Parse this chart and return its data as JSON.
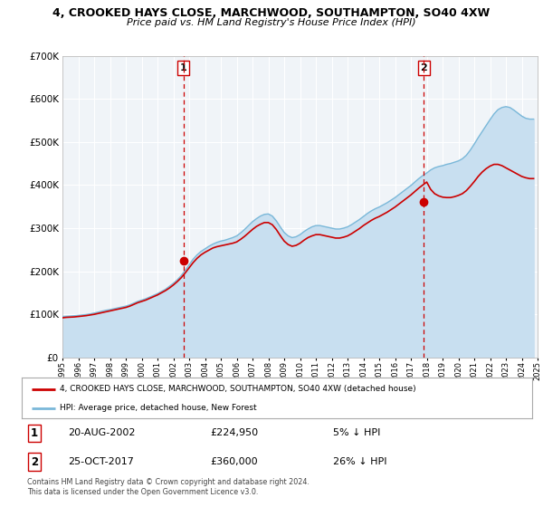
{
  "title": "4, CROOKED HAYS CLOSE, MARCHWOOD, SOUTHAMPTON, SO40 4XW",
  "subtitle": "Price paid vs. HM Land Registry's House Price Index (HPI)",
  "legend_line1": "4, CROOKED HAYS CLOSE, MARCHWOOD, SOUTHAMPTON, SO40 4XW (detached house)",
  "legend_line2": "HPI: Average price, detached house, New Forest",
  "footer1": "Contains HM Land Registry data © Crown copyright and database right 2024.",
  "footer2": "This data is licensed under the Open Government Licence v3.0.",
  "sale1_date": "20-AUG-2002",
  "sale1_price": 224950,
  "sale1_label": "5% ↓ HPI",
  "sale1_year": 2002.63,
  "sale2_date": "25-OCT-2017",
  "sale2_price": 360000,
  "sale2_label": "26% ↓ HPI",
  "sale2_year": 2017.81,
  "hpi_color": "#7ab8d9",
  "hpi_fill_color": "#c8dff0",
  "price_color": "#cc0000",
  "vline_color": "#cc0000",
  "plot_bg": "#f0f4f8",
  "ylim": [
    0,
    700000
  ],
  "xlim_start": 1995,
  "xlim_end": 2025,
  "hpi_data": [
    [
      1995.0,
      95000
    ],
    [
      1995.25,
      95500
    ],
    [
      1995.5,
      96000
    ],
    [
      1995.75,
      96800
    ],
    [
      1996.0,
      97500
    ],
    [
      1996.25,
      98500
    ],
    [
      1996.5,
      99500
    ],
    [
      1996.75,
      101000
    ],
    [
      1997.0,
      103000
    ],
    [
      1997.25,
      105000
    ],
    [
      1997.5,
      107500
    ],
    [
      1997.75,
      109500
    ],
    [
      1998.0,
      111000
    ],
    [
      1998.25,
      113000
    ],
    [
      1998.5,
      115000
    ],
    [
      1998.75,
      117000
    ],
    [
      1999.0,
      119000
    ],
    [
      1999.25,
      122000
    ],
    [
      1999.5,
      126000
    ],
    [
      1999.75,
      130000
    ],
    [
      2000.0,
      133000
    ],
    [
      2000.25,
      136000
    ],
    [
      2000.5,
      140000
    ],
    [
      2000.75,
      144000
    ],
    [
      2001.0,
      148000
    ],
    [
      2001.25,
      153000
    ],
    [
      2001.5,
      158000
    ],
    [
      2001.75,
      165000
    ],
    [
      2002.0,
      172000
    ],
    [
      2002.25,
      180000
    ],
    [
      2002.5,
      190000
    ],
    [
      2002.75,
      202000
    ],
    [
      2003.0,
      215000
    ],
    [
      2003.25,
      228000
    ],
    [
      2003.5,
      238000
    ],
    [
      2003.75,
      246000
    ],
    [
      2004.0,
      252000
    ],
    [
      2004.25,
      258000
    ],
    [
      2004.5,
      263000
    ],
    [
      2004.75,
      267000
    ],
    [
      2005.0,
      270000
    ],
    [
      2005.25,
      272000
    ],
    [
      2005.5,
      275000
    ],
    [
      2005.75,
      278000
    ],
    [
      2006.0,
      282000
    ],
    [
      2006.25,
      289000
    ],
    [
      2006.5,
      297000
    ],
    [
      2006.75,
      306000
    ],
    [
      2007.0,
      315000
    ],
    [
      2007.25,
      322000
    ],
    [
      2007.5,
      328000
    ],
    [
      2007.75,
      332000
    ],
    [
      2008.0,
      333000
    ],
    [
      2008.25,
      328000
    ],
    [
      2008.5,
      317000
    ],
    [
      2008.75,
      303000
    ],
    [
      2009.0,
      290000
    ],
    [
      2009.25,
      282000
    ],
    [
      2009.5,
      278000
    ],
    [
      2009.75,
      280000
    ],
    [
      2010.0,
      285000
    ],
    [
      2010.25,
      292000
    ],
    [
      2010.5,
      298000
    ],
    [
      2010.75,
      303000
    ],
    [
      2011.0,
      306000
    ],
    [
      2011.25,
      306000
    ],
    [
      2011.5,
      304000
    ],
    [
      2011.75,
      302000
    ],
    [
      2012.0,
      300000
    ],
    [
      2012.25,
      298000
    ],
    [
      2012.5,
      298000
    ],
    [
      2012.75,
      300000
    ],
    [
      2013.0,
      303000
    ],
    [
      2013.25,
      308000
    ],
    [
      2013.5,
      314000
    ],
    [
      2013.75,
      320000
    ],
    [
      2014.0,
      327000
    ],
    [
      2014.25,
      334000
    ],
    [
      2014.5,
      340000
    ],
    [
      2014.75,
      345000
    ],
    [
      2015.0,
      349000
    ],
    [
      2015.25,
      354000
    ],
    [
      2015.5,
      359000
    ],
    [
      2015.75,
      365000
    ],
    [
      2016.0,
      371000
    ],
    [
      2016.25,
      378000
    ],
    [
      2016.5,
      385000
    ],
    [
      2016.75,
      392000
    ],
    [
      2017.0,
      399000
    ],
    [
      2017.25,
      407000
    ],
    [
      2017.5,
      415000
    ],
    [
      2017.75,
      422000
    ],
    [
      2018.0,
      428000
    ],
    [
      2018.25,
      435000
    ],
    [
      2018.5,
      440000
    ],
    [
      2018.75,
      443000
    ],
    [
      2019.0,
      445000
    ],
    [
      2019.25,
      448000
    ],
    [
      2019.5,
      450000
    ],
    [
      2019.75,
      453000
    ],
    [
      2020.0,
      456000
    ],
    [
      2020.25,
      461000
    ],
    [
      2020.5,
      469000
    ],
    [
      2020.75,
      481000
    ],
    [
      2021.0,
      495000
    ],
    [
      2021.25,
      510000
    ],
    [
      2021.5,
      524000
    ],
    [
      2021.75,
      538000
    ],
    [
      2022.0,
      552000
    ],
    [
      2022.25,
      565000
    ],
    [
      2022.5,
      575000
    ],
    [
      2022.75,
      580000
    ],
    [
      2023.0,
      582000
    ],
    [
      2023.25,
      580000
    ],
    [
      2023.5,
      574000
    ],
    [
      2023.75,
      567000
    ],
    [
      2024.0,
      560000
    ],
    [
      2024.25,
      555000
    ],
    [
      2024.5,
      553000
    ],
    [
      2024.75,
      553000
    ]
  ],
  "price_data": [
    [
      1995.0,
      92000
    ],
    [
      1995.25,
      93000
    ],
    [
      1995.5,
      93500
    ],
    [
      1995.75,
      94000
    ],
    [
      1996.0,
      95000
    ],
    [
      1996.25,
      96000
    ],
    [
      1996.5,
      97000
    ],
    [
      1996.75,
      98500
    ],
    [
      1997.0,
      100000
    ],
    [
      1997.25,
      102000
    ],
    [
      1997.5,
      104000
    ],
    [
      1997.75,
      106000
    ],
    [
      1998.0,
      108000
    ],
    [
      1998.25,
      110000
    ],
    [
      1998.5,
      112000
    ],
    [
      1998.75,
      114000
    ],
    [
      1999.0,
      116000
    ],
    [
      1999.25,
      119000
    ],
    [
      1999.5,
      123000
    ],
    [
      1999.75,
      127000
    ],
    [
      2000.0,
      130000
    ],
    [
      2000.25,
      133000
    ],
    [
      2000.5,
      137000
    ],
    [
      2000.75,
      141000
    ],
    [
      2001.0,
      145000
    ],
    [
      2001.25,
      150000
    ],
    [
      2001.5,
      155000
    ],
    [
      2001.75,
      161000
    ],
    [
      2002.0,
      168000
    ],
    [
      2002.25,
      176000
    ],
    [
      2002.5,
      185000
    ],
    [
      2002.75,
      196000
    ],
    [
      2003.0,
      208000
    ],
    [
      2003.25,
      220000
    ],
    [
      2003.5,
      230000
    ],
    [
      2003.75,
      238000
    ],
    [
      2004.0,
      244000
    ],
    [
      2004.25,
      249000
    ],
    [
      2004.5,
      254000
    ],
    [
      2004.75,
      257000
    ],
    [
      2005.0,
      259000
    ],
    [
      2005.25,
      261000
    ],
    [
      2005.5,
      263000
    ],
    [
      2005.75,
      265000
    ],
    [
      2006.0,
      268000
    ],
    [
      2006.25,
      274000
    ],
    [
      2006.5,
      281000
    ],
    [
      2006.75,
      289000
    ],
    [
      2007.0,
      297000
    ],
    [
      2007.25,
      304000
    ],
    [
      2007.5,
      309000
    ],
    [
      2007.75,
      313000
    ],
    [
      2008.0,
      313000
    ],
    [
      2008.25,
      308000
    ],
    [
      2008.5,
      297000
    ],
    [
      2008.75,
      283000
    ],
    [
      2009.0,
      270000
    ],
    [
      2009.25,
      262000
    ],
    [
      2009.5,
      258000
    ],
    [
      2009.75,
      260000
    ],
    [
      2010.0,
      265000
    ],
    [
      2010.25,
      272000
    ],
    [
      2010.5,
      278000
    ],
    [
      2010.75,
      282000
    ],
    [
      2011.0,
      285000
    ],
    [
      2011.25,
      285000
    ],
    [
      2011.5,
      283000
    ],
    [
      2011.75,
      281000
    ],
    [
      2012.0,
      279000
    ],
    [
      2012.25,
      277000
    ],
    [
      2012.5,
      277000
    ],
    [
      2012.75,
      279000
    ],
    [
      2013.0,
      282000
    ],
    [
      2013.25,
      287000
    ],
    [
      2013.5,
      293000
    ],
    [
      2013.75,
      299000
    ],
    [
      2014.0,
      306000
    ],
    [
      2014.25,
      312000
    ],
    [
      2014.5,
      318000
    ],
    [
      2014.75,
      323000
    ],
    [
      2015.0,
      327000
    ],
    [
      2015.25,
      332000
    ],
    [
      2015.5,
      337000
    ],
    [
      2015.75,
      343000
    ],
    [
      2016.0,
      349000
    ],
    [
      2016.25,
      356000
    ],
    [
      2016.5,
      363000
    ],
    [
      2016.75,
      370000
    ],
    [
      2017.0,
      377000
    ],
    [
      2017.25,
      385000
    ],
    [
      2017.5,
      393000
    ],
    [
      2017.75,
      400000
    ],
    [
      2018.0,
      407000
    ],
    [
      2018.25,
      390000
    ],
    [
      2018.5,
      380000
    ],
    [
      2018.75,
      375000
    ],
    [
      2019.0,
      372000
    ],
    [
      2019.25,
      371000
    ],
    [
      2019.5,
      371000
    ],
    [
      2019.75,
      373000
    ],
    [
      2020.0,
      376000
    ],
    [
      2020.25,
      380000
    ],
    [
      2020.5,
      387000
    ],
    [
      2020.75,
      397000
    ],
    [
      2021.0,
      408000
    ],
    [
      2021.25,
      420000
    ],
    [
      2021.5,
      430000
    ],
    [
      2021.75,
      438000
    ],
    [
      2022.0,
      444000
    ],
    [
      2022.25,
      448000
    ],
    [
      2022.5,
      448000
    ],
    [
      2022.75,
      445000
    ],
    [
      2023.0,
      440000
    ],
    [
      2023.25,
      435000
    ],
    [
      2023.5,
      430000
    ],
    [
      2023.75,
      425000
    ],
    [
      2024.0,
      420000
    ],
    [
      2024.25,
      417000
    ],
    [
      2024.5,
      415000
    ],
    [
      2024.75,
      415000
    ]
  ]
}
